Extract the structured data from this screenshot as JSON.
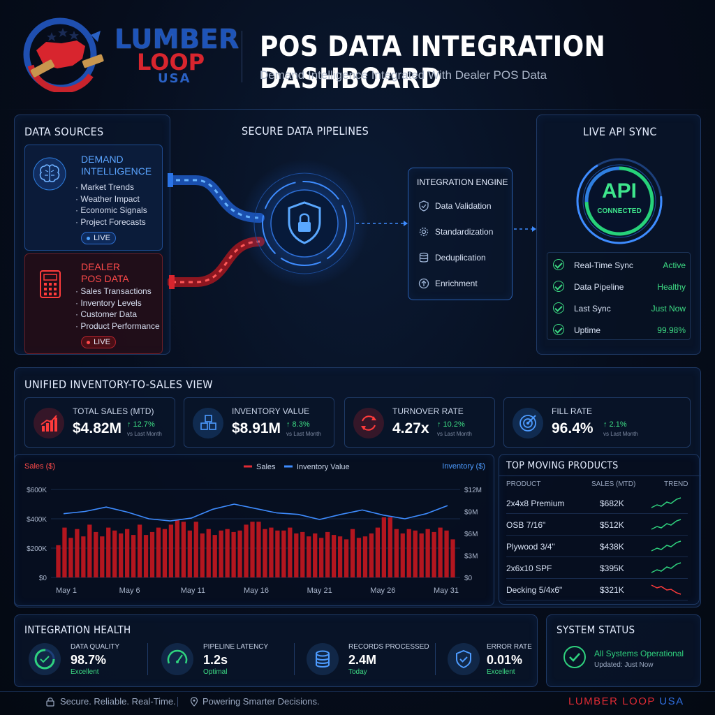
{
  "header": {
    "brand": {
      "line1": "LUMBER",
      "line2": "LOOP",
      "line3": "USA"
    },
    "title": "POS DATA INTEGRATION DASHBOARD",
    "subtitle": "Demand Intelligence Integrated With Dealer POS Data"
  },
  "data_sources": {
    "title": "DATA SOURCES",
    "demand": {
      "title_line1": "DEMAND",
      "title_line2": "INTELLIGENCE",
      "items": [
        "· Market Trends",
        "· Weather Impact",
        "· Economic Signals",
        "· Project Forecasts"
      ],
      "badge": "LIVE"
    },
    "pos": {
      "title_line1": "DEALER",
      "title_line2": "POS DATA",
      "items": [
        "· Sales Transactions",
        "· Inventory Levels",
        "· Customer Data",
        "· Product Performance"
      ],
      "badge": "LIVE"
    }
  },
  "pipelines": {
    "title": "SECURE DATA PIPELINES"
  },
  "engine": {
    "title": "INTEGRATION ENGINE",
    "items": [
      "Data Validation",
      "Standardization",
      "Deduplication",
      "Enrichment"
    ]
  },
  "api": {
    "title": "LIVE API SYNC",
    "ring_main": "API",
    "ring_sub": "CONNECTED",
    "rows": [
      {
        "label": "Real-Time Sync",
        "value": "Active"
      },
      {
        "label": "Data Pipeline",
        "value": "Healthy"
      },
      {
        "label": "Last Sync",
        "value": "Just Now"
      },
      {
        "label": "Uptime",
        "value": "99.98%"
      }
    ]
  },
  "unified": {
    "title": "UNIFIED INVENTORY-TO-SALES VIEW",
    "kpis": [
      {
        "label": "TOTAL SALES (MTD)",
        "value": "$4.82M",
        "delta": "↑ 12.7%",
        "vs": "vs Last Month",
        "icon": "bar-chart-icon",
        "color": "#d8252e"
      },
      {
        "label": "INVENTORY VALUE",
        "value": "$8.91M",
        "delta": "↑ 8.3%",
        "vs": "vs Last Month",
        "icon": "boxes-icon",
        "color": "#2f7fe0"
      },
      {
        "label": "TURNOVER RATE",
        "value": "4.27x",
        "delta": "↑ 10.2%",
        "vs": "vs Last Month",
        "icon": "refresh-icon",
        "color": "#d8252e"
      },
      {
        "label": "FILL RATE",
        "value": "96.4%",
        "delta": "↑ 2.1%",
        "vs": "vs Last Month",
        "icon": "target-icon",
        "color": "#2f7fe0"
      }
    ]
  },
  "chart_data": {
    "type": "bar",
    "left_axis_label": "Sales ($)",
    "right_axis_label": "Inventory ($)",
    "legend": [
      "Sales",
      "Inventory Value"
    ],
    "x_tick_labels": [
      "May 1",
      "May 6",
      "May 11",
      "May 16",
      "May 21",
      "May 26",
      "May 31"
    ],
    "y_left_ticks": [
      "$0",
      "$200K",
      "$400K",
      "$600K"
    ],
    "y_right_ticks": [
      "$0",
      "$3M",
      "$6M",
      "$9M",
      "$12M"
    ],
    "ylim_left": [
      0,
      600000
    ],
    "ylim_right": [
      0,
      12000000
    ],
    "series": [
      {
        "name": "Sales",
        "axis": "left",
        "values": [
          220000,
          340000,
          270000,
          330000,
          280000,
          360000,
          310000,
          280000,
          340000,
          320000,
          300000,
          330000,
          290000,
          360000,
          290000,
          310000,
          340000,
          330000,
          360000,
          390000,
          380000,
          320000,
          380000,
          300000,
          330000,
          290000,
          320000,
          330000,
          310000,
          320000,
          360000,
          380000,
          380000,
          330000,
          340000,
          320000,
          320000,
          340000,
          300000,
          310000,
          280000,
          300000,
          270000,
          310000,
          290000,
          280000,
          260000,
          330000,
          270000,
          280000,
          300000,
          340000,
          410000,
          410000,
          330000,
          300000,
          330000,
          320000,
          300000,
          330000,
          310000,
          340000,
          320000,
          260000
        ]
      },
      {
        "name": "Inventory Value",
        "axis": "right",
        "values": [
          8700000,
          9000000,
          9600000,
          8900000,
          8000000,
          7700000,
          8100000,
          9300000,
          10000000,
          9400000,
          8800000,
          8600000,
          7900000,
          8600000,
          9200000,
          8500000,
          8000000,
          8700000,
          9800000
        ]
      }
    ]
  },
  "top_products": {
    "title": "TOP MOVING PRODUCTS",
    "headers": {
      "product": "PRODUCT",
      "sales": "SALES (MTD)",
      "trend": "TREND"
    },
    "rows": [
      {
        "name": "2x4x8 Premium",
        "sales": "$682K",
        "trend": "up"
      },
      {
        "name": "OSB 7/16\"",
        "sales": "$512K",
        "trend": "up"
      },
      {
        "name": "Plywood 3/4\"",
        "sales": "$438K",
        "trend": "up"
      },
      {
        "name": "2x6x10 SPF",
        "sales": "$395K",
        "trend": "up"
      },
      {
        "name": "Decking 5/4x6\"",
        "sales": "$321K",
        "trend": "down"
      }
    ]
  },
  "health": {
    "title": "INTEGRATION HEALTH",
    "items": [
      {
        "label": "DATA QUALITY",
        "value": "98.7%",
        "sub": "Excellent",
        "icon": "quality-gauge-icon"
      },
      {
        "label": "PIPELINE LATENCY",
        "value": "1.2s",
        "sub": "Optimal",
        "icon": "speedometer-icon"
      },
      {
        "label": "RECORDS PROCESSED",
        "value": "2.4M",
        "sub": "Today",
        "icon": "database-icon"
      },
      {
        "label": "ERROR RATE",
        "value": "0.01%",
        "sub": "Excellent",
        "icon": "shield-check-icon"
      }
    ]
  },
  "system": {
    "title": "SYSTEM STATUS",
    "status": "All Systems Operational",
    "updated": "Updated: Just Now"
  },
  "footer": {
    "left": "Secure. Reliable. Real-Time.",
    "middle": "Powering Smarter Decisions.",
    "brand_a": "LUMBER",
    "brand_b": "LOOP",
    "brand_c": "USA"
  }
}
